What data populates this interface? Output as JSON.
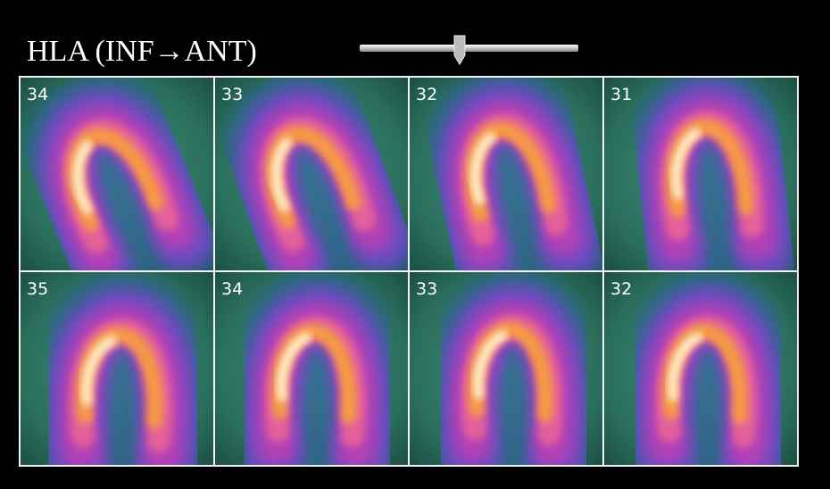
{
  "title": "HLA (INF→ANT)",
  "grid": {
    "rows": [
      [
        "34",
        "33",
        "32",
        "31"
      ],
      [
        "35",
        "34",
        "33",
        "32"
      ]
    ]
  }
}
